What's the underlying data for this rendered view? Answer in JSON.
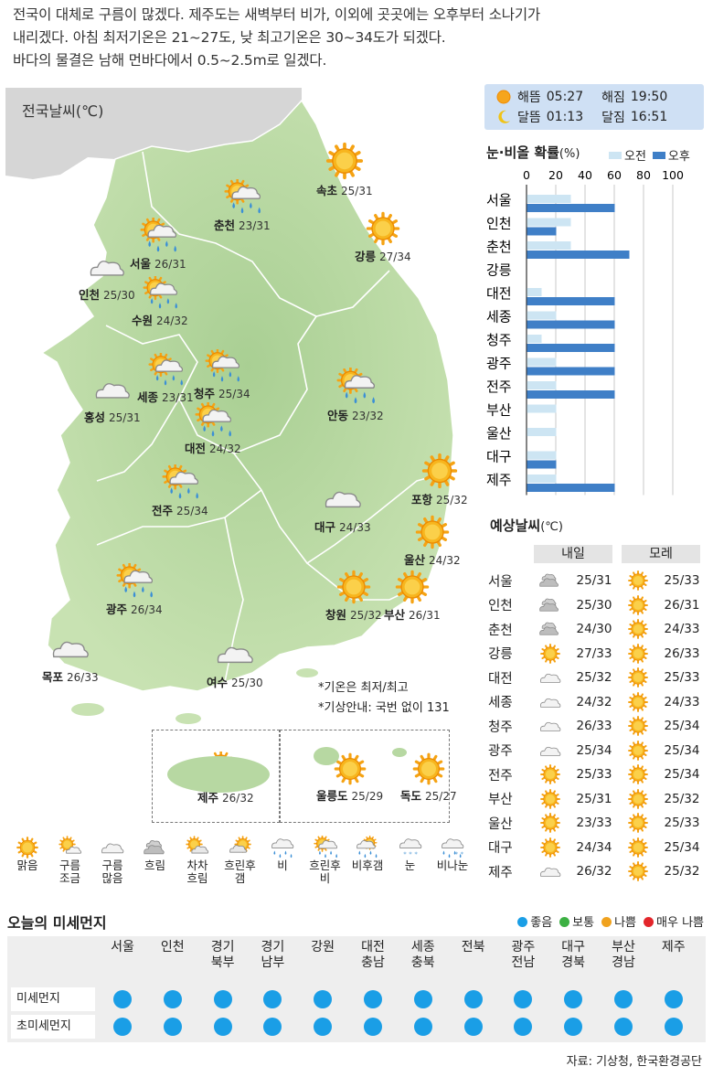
{
  "summary": {
    "line1": "전국이 대체로 구름이 많겠다. 제주도는 새벽부터 비가, 이외에 곳곳에는 오후부터 소나기가",
    "line2": "내리겠다. 아침 최저기온은 21~27도, 낮 최고기온은 30~34도가 되겠다.",
    "line3": "바다의 물결은 남해 먼바다에서 0.5~2.5m로 일겠다."
  },
  "map": {
    "title": "전국날씨(℃)",
    "note1": "*기온은 최저/최고",
    "note2": "*기상안내: 국번 없이 131",
    "cities": [
      {
        "name": "속초",
        "temp": "25/31",
        "icon": "sunny-icon"
      },
      {
        "name": "춘천",
        "temp": "23/31",
        "icon": "rain-after-cloudy-icon"
      },
      {
        "name": "강릉",
        "temp": "27/34",
        "icon": "sunny-icon"
      },
      {
        "name": "서울",
        "temp": "26/31",
        "icon": "rain-after-cloudy-icon"
      },
      {
        "name": "인천",
        "temp": "25/30",
        "icon": "cloudy-icon"
      },
      {
        "name": "수원",
        "temp": "24/32",
        "icon": "rain-after-cloudy-icon"
      },
      {
        "name": "홍성",
        "temp": "25/31",
        "icon": "cloudy-icon"
      },
      {
        "name": "세종",
        "temp": "23/31",
        "icon": "rain-after-cloudy-icon"
      },
      {
        "name": "청주",
        "temp": "25/34",
        "icon": "rain-after-cloudy-icon"
      },
      {
        "name": "대전",
        "temp": "24/32",
        "icon": "rain-after-cloudy-icon"
      },
      {
        "name": "안동",
        "temp": "23/32",
        "icon": "rain-after-cloudy-icon"
      },
      {
        "name": "전주",
        "temp": "25/34",
        "icon": "rain-after-cloudy-icon"
      },
      {
        "name": "포항",
        "temp": "25/32",
        "icon": "sunny-icon"
      },
      {
        "name": "대구",
        "temp": "24/33",
        "icon": "cloudy-icon"
      },
      {
        "name": "울산",
        "temp": "24/32",
        "icon": "sunny-icon"
      },
      {
        "name": "광주",
        "temp": "26/34",
        "icon": "rain-after-cloudy-icon"
      },
      {
        "name": "창원",
        "temp": "25/32",
        "icon": "sunny-icon"
      },
      {
        "name": "부산",
        "temp": "26/31",
        "icon": "sunny-icon"
      },
      {
        "name": "목포",
        "temp": "26/33",
        "icon": "cloudy-icon"
      },
      {
        "name": "여수",
        "temp": "25/30",
        "icon": "cloudy-icon"
      },
      {
        "name": "제주",
        "temp": "26/32",
        "icon": "rain-after-cloudy-icon"
      },
      {
        "name": "울릉도",
        "temp": "25/29",
        "icon": "sunny-icon"
      },
      {
        "name": "독도",
        "temp": "25/27",
        "icon": "sunny-icon"
      }
    ]
  },
  "sun_moon": {
    "sunrise_label": "해뜸",
    "sunrise": "05:27",
    "sunset_label": "해짐",
    "sunset": "19:50",
    "moonrise_label": "달뜸",
    "moonrise": "01:13",
    "moonset_label": "달짐",
    "moonset": "16:51"
  },
  "chart_data": {
    "type": "bar",
    "title": "눈·비올 확률",
    "unit": "(%)",
    "xlim": [
      0,
      100
    ],
    "ticks": [
      "0",
      "20",
      "40",
      "60",
      "80",
      "100"
    ],
    "categories": [
      "서울",
      "인천",
      "춘천",
      "강릉",
      "대전",
      "세종",
      "청주",
      "광주",
      "전주",
      "부산",
      "울산",
      "대구",
      "제주"
    ],
    "series": [
      {
        "name": "오전",
        "color": "#cde5f3",
        "values": [
          30,
          30,
          30,
          0,
          10,
          20,
          10,
          20,
          20,
          20,
          20,
          20,
          20
        ]
      },
      {
        "name": "오후",
        "color": "#3f7fc7",
        "values": [
          60,
          20,
          70,
          0,
          60,
          60,
          60,
          60,
          60,
          0,
          0,
          20,
          60
        ]
      }
    ]
  },
  "forecast": {
    "title": "예상날씨",
    "unit": "(℃)",
    "tomorrow": "내일",
    "day_after": "모레",
    "rows": [
      {
        "name": "서울",
        "d1_icon": "overcast-icon",
        "d1": "25/31",
        "d2_icon": "sunny-icon",
        "d2": "25/33"
      },
      {
        "name": "인천",
        "d1_icon": "overcast-icon",
        "d1": "25/30",
        "d2_icon": "sunny-icon",
        "d2": "26/31"
      },
      {
        "name": "춘천",
        "d1_icon": "overcast-icon",
        "d1": "24/30",
        "d2_icon": "sunny-icon",
        "d2": "24/33"
      },
      {
        "name": "강릉",
        "d1_icon": "sunny-icon",
        "d1": "27/33",
        "d2_icon": "sunny-icon",
        "d2": "26/33"
      },
      {
        "name": "대전",
        "d1_icon": "cloudy-icon",
        "d1": "25/32",
        "d2_icon": "sunny-icon",
        "d2": "25/33"
      },
      {
        "name": "세종",
        "d1_icon": "cloudy-icon",
        "d1": "24/32",
        "d2_icon": "sunny-icon",
        "d2": "24/33"
      },
      {
        "name": "청주",
        "d1_icon": "cloudy-icon",
        "d1": "26/33",
        "d2_icon": "sunny-icon",
        "d2": "25/34"
      },
      {
        "name": "광주",
        "d1_icon": "cloudy-icon",
        "d1": "25/34",
        "d2_icon": "sunny-icon",
        "d2": "25/34"
      },
      {
        "name": "전주",
        "d1_icon": "sunny-icon",
        "d1": "25/33",
        "d2_icon": "sunny-icon",
        "d2": "25/34"
      },
      {
        "name": "부산",
        "d1_icon": "sunny-icon",
        "d1": "25/31",
        "d2_icon": "sunny-icon",
        "d2": "25/32"
      },
      {
        "name": "울산",
        "d1_icon": "sunny-icon",
        "d1": "23/33",
        "d2_icon": "sunny-icon",
        "d2": "25/33"
      },
      {
        "name": "대구",
        "d1_icon": "sunny-icon",
        "d1": "24/34",
        "d2_icon": "sunny-icon",
        "d2": "25/34"
      },
      {
        "name": "제주",
        "d1_icon": "cloudy-icon",
        "d1": "26/32",
        "d2_icon": "sunny-icon",
        "d2": "25/32"
      }
    ]
  },
  "legend": [
    {
      "label1": "맑음",
      "label2": "",
      "icon": "sunny-icon"
    },
    {
      "label1": "구름",
      "label2": "조금",
      "icon": "partly-cloudy-icon"
    },
    {
      "label1": "구름",
      "label2": "많음",
      "icon": "cloudy-icon"
    },
    {
      "label1": "흐림",
      "label2": "",
      "icon": "overcast-icon"
    },
    {
      "label1": "차차",
      "label2": "흐림",
      "icon": "gradually-cloudy-icon"
    },
    {
      "label1": "흐린후",
      "label2": "갬",
      "icon": "clearing-icon"
    },
    {
      "label1": "비",
      "label2": "",
      "icon": "rain-icon"
    },
    {
      "label1": "흐린후",
      "label2": "비",
      "icon": "rain-after-cloudy-icon"
    },
    {
      "label1": "비후갬",
      "label2": "",
      "icon": "rain-then-clear-icon"
    },
    {
      "label1": "눈",
      "label2": "",
      "icon": "snow-icon"
    },
    {
      "label1": "비나눈",
      "label2": "",
      "icon": "rain-or-snow-icon"
    }
  ],
  "dust": {
    "title": "오늘의 미세먼지",
    "legend": [
      {
        "label": "좋음",
        "color": "#1a9ee6"
      },
      {
        "label": "보통",
        "color": "#3cb043"
      },
      {
        "label": "나쁨",
        "color": "#f0a21e"
      },
      {
        "label": "매우 나쁨",
        "color": "#e3262b"
      }
    ],
    "regions": [
      {
        "l1": "서울",
        "l2": ""
      },
      {
        "l1": "인천",
        "l2": ""
      },
      {
        "l1": "경기",
        "l2": "북부"
      },
      {
        "l1": "경기",
        "l2": "남부"
      },
      {
        "l1": "강원",
        "l2": ""
      },
      {
        "l1": "대전",
        "l2": "충남"
      },
      {
        "l1": "세종",
        "l2": "충북"
      },
      {
        "l1": "전북",
        "l2": ""
      },
      {
        "l1": "광주",
        "l2": "전남"
      },
      {
        "l1": "대구",
        "l2": "경북"
      },
      {
        "l1": "부산",
        "l2": "경남"
      },
      {
        "l1": "제주",
        "l2": ""
      }
    ],
    "rows": [
      {
        "label": "미세먼지",
        "levels": [
          "좋음",
          "좋음",
          "좋음",
          "좋음",
          "좋음",
          "좋음",
          "좋음",
          "좋음",
          "좋음",
          "좋음",
          "좋음",
          "좋음"
        ]
      },
      {
        "label": "초미세먼지",
        "levels": [
          "좋음",
          "좋음",
          "좋음",
          "좋음",
          "좋음",
          "좋음",
          "좋음",
          "좋음",
          "좋음",
          "좋음",
          "좋음",
          "좋음"
        ]
      }
    ]
  },
  "source": "자료: 기상청, 한국환경공단"
}
